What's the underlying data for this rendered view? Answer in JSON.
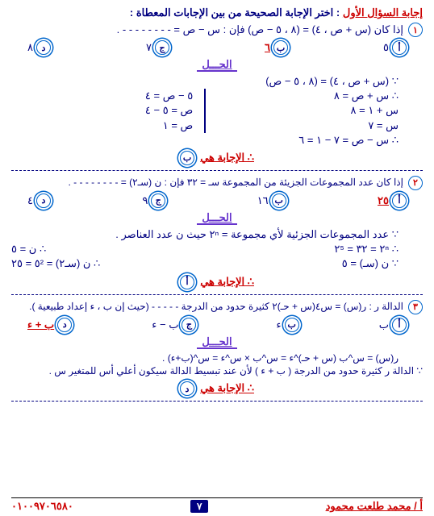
{
  "title_part1": "إجابة السؤال الأول",
  "title_part2": " : اختر الإجابة الصحيحة من بين الإجابات المعطاة :",
  "q1": {
    "num": "١",
    "text": "إذا كان (س + ص ، ٤) = (٨ ، ٥ − ص) فإن : س − ص = - - - - - - - - .",
    "a": "٥",
    "b": "٦",
    "c": "٧",
    "d": "٨",
    "sol_l1": "∵ (س + ص ، ٤) = (٨ ، ٥ − ص)",
    "sol_left1": "∴  س + ص = ٨",
    "sol_left2": "    س + ١ = ٨",
    "sol_left3": "        س = ٧",
    "sol_right1": "٥ − ص = ٤",
    "sol_right2": "ص = ٥ − ٤",
    "sol_right3": "ص = ١",
    "sol_final": "∴ س − ص = ٧ − ١ = ٦",
    "ans_label": "∴ الإجابة  هي",
    "ans_choice": "ب"
  },
  "q2": {
    "num": "٢",
    "text": "إذا كان عدد المجموعات الجزيئة من المجموعة سـ = ٣٢  فإن : ن (سـ٢) = - - - - - - - - .",
    "a": "٢٥",
    "b": "١٦",
    "c": "٩",
    "d": "٤",
    "sol_l1": "∵ عدد المجموعات الجزئية لأي مجموعة = ٢ⁿ  حيث ن عدد العناصر .",
    "sol_left": "∴  ٢ⁿ = ٣٢ = ٢⁵",
    "sol_right": "∴  ن = ٥",
    "sol_left2": "∵ ن (سـ) = ٥",
    "sol_right2": "∴  ن (سـ٢) = ٥² = ٢٥",
    "ans_label": "∴ الإجابة  هي",
    "ans_choice": "أ"
  },
  "q3": {
    "num": "٣",
    "text": "الدالة ر : ر(س) = س٤(س + حـ)٢ كثيرة حدود من الدرجة - - - - - (حيث إن ب ، ء إعداد طبيعية ).",
    "a": "ب",
    "b": "ء",
    "c": "ب − ء",
    "d": "ب + ء",
    "sol_l1": "ر(س) = س^ب (س + حـ)^ء = س^ب × س^ء = س^(ب+ء) .",
    "sol_l2": "∵ الدالة ر كثيرة حدود من الدرجة  ( ب + ء ) لأن عند تبسيط الدالة سيكون أعلي أس للمتغير س .",
    "ans_label": "∴ الإجابة  هي",
    "ans_choice": "د"
  },
  "sol_title": "الحـــل",
  "footer": {
    "name": "أ / محمد طلعت محمود",
    "page": "٧",
    "phone": "٠١٠٠٩٧٠٦٥٨٠"
  }
}
